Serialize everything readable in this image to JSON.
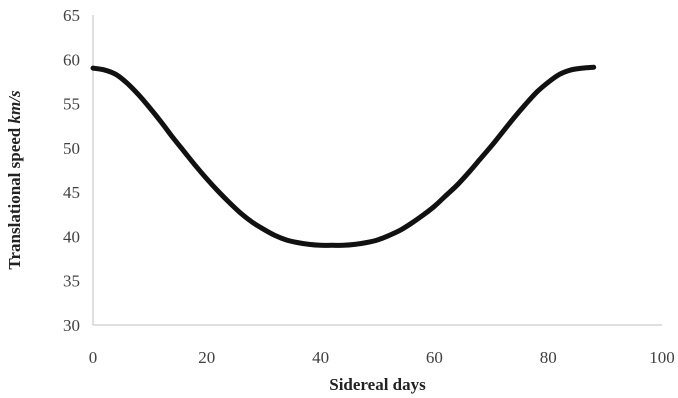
{
  "chart_data": {
    "type": "line",
    "title": "",
    "xlabel": "Sidereal days",
    "ylabel_text": "Translational speed ",
    "ylabel_unit": "km/s",
    "xlim": [
      0,
      100
    ],
    "ylim": [
      30,
      65
    ],
    "x_ticks": [
      0,
      20,
      40,
      60,
      80,
      100
    ],
    "y_ticks": [
      30,
      35,
      40,
      45,
      50,
      55,
      60,
      65
    ],
    "grid": false,
    "legend": "none",
    "series": [
      {
        "color": "#111111",
        "x": [
          0,
          2,
          4,
          6,
          8,
          10,
          12,
          14,
          16,
          18,
          20,
          22,
          24,
          26,
          28,
          30,
          32,
          34,
          36,
          38,
          40,
          42,
          44,
          46,
          48,
          50,
          52,
          54,
          56,
          58,
          60,
          62,
          64,
          66,
          68,
          70,
          72,
          74,
          76,
          78,
          80,
          82,
          84,
          86,
          88
        ],
        "y": [
          59.0,
          58.8,
          58.3,
          57.3,
          56.0,
          54.5,
          52.9,
          51.2,
          49.6,
          48.0,
          46.5,
          45.1,
          43.8,
          42.6,
          41.6,
          40.8,
          40.1,
          39.6,
          39.3,
          39.1,
          39.0,
          39.0,
          39.0,
          39.1,
          39.3,
          39.6,
          40.1,
          40.7,
          41.5,
          42.4,
          43.4,
          44.6,
          45.8,
          47.2,
          48.7,
          50.2,
          51.8,
          53.4,
          54.9,
          56.3,
          57.4,
          58.3,
          58.8,
          59.0,
          59.1
        ]
      }
    ]
  }
}
